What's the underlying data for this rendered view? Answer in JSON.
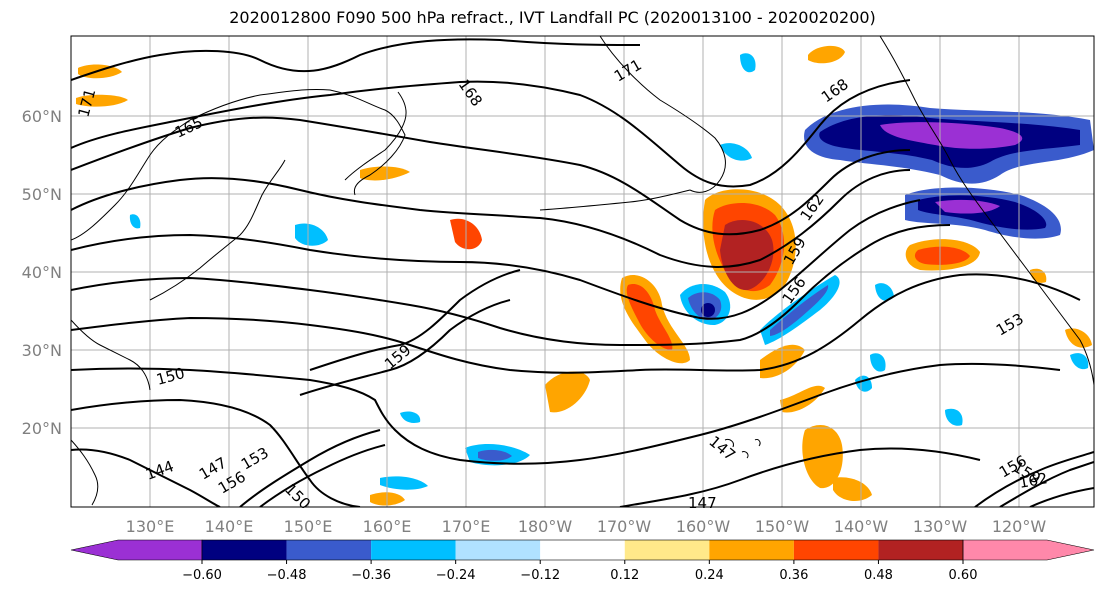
{
  "title": "2020012800 F090 500 hPa refract., IVT Landfall PC (2020013100 - 2020020200)",
  "map": {
    "lat_labels": [
      "60°N",
      "50°N",
      "40°N",
      "30°N",
      "20°N"
    ],
    "lon_labels": [
      "130°E",
      "140°E",
      "150°E",
      "160°E",
      "170°E",
      "180°W",
      "170°W",
      "160°W",
      "150°W",
      "140°W",
      "130°W",
      "120°W"
    ],
    "contour_labels": [
      "171",
      "165",
      "168",
      "171",
      "168",
      "162",
      "159",
      "156",
      "153",
      "159",
      "150",
      "144",
      "147",
      "156",
      "153",
      "150",
      "147",
      "147",
      "156",
      "159",
      "162"
    ],
    "colors": {
      "land_outline": "#000000",
      "grid": "#b0b0b0",
      "contour": "#000000"
    }
  },
  "colorbar": {
    "colors": [
      "#9b30d4",
      "#000080",
      "#3a5bcc",
      "#00bfff",
      "#b0e2ff",
      "#ffffff",
      "#ffe98a",
      "#ffa500",
      "#ff4500",
      "#b22222",
      "#ff88aa"
    ],
    "ticks": [
      "−0.60",
      "−0.48",
      "−0.36",
      "−0.24",
      "−0.12",
      "0.12",
      "0.24",
      "0.36",
      "0.48",
      "0.60"
    ]
  }
}
